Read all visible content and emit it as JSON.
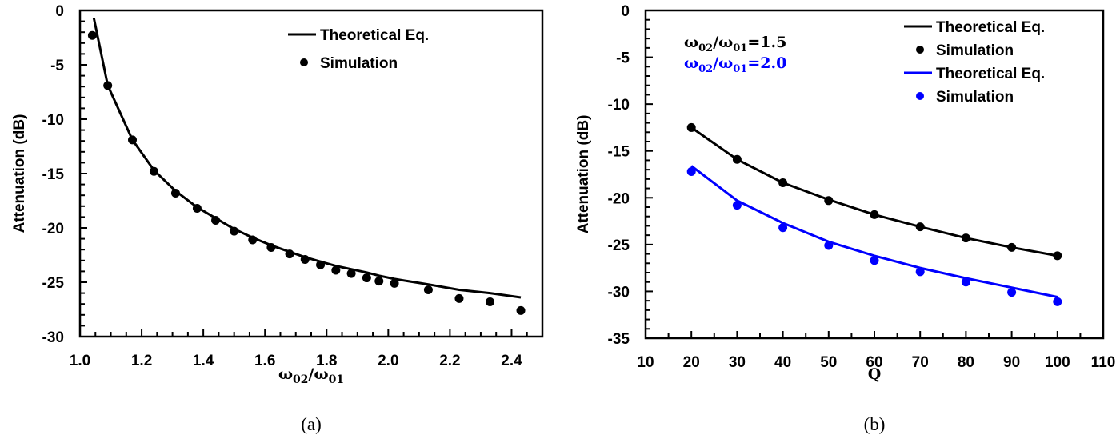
{
  "chart_data": [
    {
      "id": "a",
      "type": "line",
      "panel_label": "(a)",
      "title": "",
      "xlabel": {
        "main": "ω",
        "sub1": "02",
        "slash": "/",
        "main2": "ω",
        "sub2": "01"
      },
      "ylabel": "Attenuation (dB)",
      "xlim": [
        1.0,
        2.5
      ],
      "ylim": [
        -30,
        0
      ],
      "xticks": [
        1.0,
        1.2,
        1.4,
        1.6,
        1.8,
        2.0,
        2.2,
        2.4
      ],
      "xtick_labels": [
        "1.0",
        "1.2",
        "1.4",
        "1.6",
        "1.8",
        "2.0",
        "2.2",
        "2.4"
      ],
      "yticks": [
        0,
        -5,
        -10,
        -15,
        -20,
        -25,
        -30
      ],
      "ytick_labels": [
        "0",
        "-5",
        "-10",
        "-15",
        "-20",
        "-25",
        "-30"
      ],
      "grid": false,
      "legend": {
        "placement": "top-right",
        "entries": [
          {
            "label": "Theoretical Eq.",
            "kind": "line",
            "color": "#000000"
          },
          {
            "label": "Simulation",
            "kind": "marker",
            "color": "#000000"
          }
        ]
      },
      "series": [
        {
          "name": "Theoretical Eq.",
          "kind": "line",
          "color": "#000000",
          "x": [
            1.045,
            1.09,
            1.17,
            1.24,
            1.31,
            1.38,
            1.44,
            1.5,
            1.56,
            1.62,
            1.68,
            1.73,
            1.78,
            1.83,
            1.88,
            1.93,
            1.97,
            2.02,
            2.13,
            2.23,
            2.33,
            2.43
          ],
          "y": [
            -0.7,
            -6.9,
            -11.9,
            -14.7,
            -16.6,
            -18.1,
            -19.1,
            -20.1,
            -20.9,
            -21.6,
            -22.2,
            -22.7,
            -23.1,
            -23.5,
            -23.8,
            -24.1,
            -24.4,
            -24.7,
            -25.2,
            -25.7,
            -26.0,
            -26.4
          ]
        },
        {
          "name": "Simulation",
          "kind": "scatter",
          "color": "#000000",
          "x": [
            1.04,
            1.09,
            1.17,
            1.24,
            1.31,
            1.38,
            1.44,
            1.5,
            1.56,
            1.62,
            1.68,
            1.73,
            1.78,
            1.83,
            1.88,
            1.93,
            1.97,
            2.02,
            2.13,
            2.23,
            2.33,
            2.43
          ],
          "y": [
            -2.3,
            -6.9,
            -11.9,
            -14.8,
            -16.8,
            -18.2,
            -19.3,
            -20.3,
            -21.1,
            -21.8,
            -22.4,
            -22.9,
            -23.4,
            -23.9,
            -24.2,
            -24.6,
            -24.9,
            -25.1,
            -25.7,
            -26.5,
            -26.8,
            -27.6
          ]
        }
      ]
    },
    {
      "id": "b",
      "type": "line",
      "panel_label": "(b)",
      "title": "",
      "xlabel": "Q",
      "ylabel": "Attenuation (dB)",
      "xlim": [
        10,
        110
      ],
      "ylim": [
        -35,
        0
      ],
      "xticks": [
        10,
        20,
        30,
        40,
        50,
        60,
        70,
        80,
        90,
        100,
        110
      ],
      "xtick_labels": [
        "10",
        "20",
        "30",
        "40",
        "50",
        "60",
        "70",
        "80",
        "90",
        "100",
        "110"
      ],
      "yticks": [
        0,
        -5,
        -10,
        -15,
        -20,
        -25,
        -30,
        -35
      ],
      "ytick_labels": [
        "0",
        "-5",
        "-10",
        "-15",
        "-20",
        "-25",
        "-30",
        "-35"
      ],
      "grid": false,
      "annotations": [
        {
          "text_main": "ω",
          "sub1": "02",
          "slash": "/",
          "text_main2": "ω",
          "sub2": "01",
          "value": "=1.5",
          "color": "#000000"
        },
        {
          "text_main": "ω",
          "sub1": "02",
          "slash": "/",
          "text_main2": "ω",
          "sub2": "01",
          "value": "=2.0",
          "color": "#0000ff"
        }
      ],
      "legend": {
        "placement": "top-right",
        "entries": [
          {
            "label": "Theoretical Eq.",
            "kind": "line",
            "color": "#000000"
          },
          {
            "label": "Simulation",
            "kind": "marker",
            "color": "#000000"
          },
          {
            "label": "Theoretical Eq.",
            "kind": "line",
            "color": "#0000ff"
          },
          {
            "label": "Simulation",
            "kind": "marker",
            "color": "#0000ff"
          }
        ]
      },
      "series": [
        {
          "name": "Theoretical Eq. (ω02/ω01=1.5)",
          "kind": "line",
          "color": "#000000",
          "x": [
            20,
            30,
            40,
            50,
            60,
            70,
            80,
            90,
            100
          ],
          "y": [
            -12.5,
            -15.9,
            -18.4,
            -20.2,
            -21.8,
            -23.1,
            -24.3,
            -25.3,
            -26.2
          ]
        },
        {
          "name": "Simulation (ω02/ω01=1.5)",
          "kind": "scatter",
          "color": "#000000",
          "x": [
            20,
            30,
            40,
            50,
            60,
            70,
            80,
            90,
            100
          ],
          "y": [
            -12.5,
            -15.9,
            -18.4,
            -20.3,
            -21.8,
            -23.1,
            -24.3,
            -25.3,
            -26.2
          ]
        },
        {
          "name": "Theoretical Eq. (ω02/ω01=2.0)",
          "kind": "line",
          "color": "#0000ff",
          "x": [
            20,
            30,
            40,
            50,
            60,
            70,
            80,
            90,
            100
          ],
          "y": [
            -16.6,
            -20.3,
            -22.7,
            -24.7,
            -26.2,
            -27.5,
            -28.6,
            -29.6,
            -30.6
          ]
        },
        {
          "name": "Simulation (ω02/ω01=2.0)",
          "kind": "scatter",
          "color": "#0000ff",
          "x": [
            20,
            30,
            40,
            50,
            60,
            70,
            80,
            90,
            100
          ],
          "y": [
            -17.2,
            -20.8,
            -23.2,
            -25.1,
            -26.7,
            -27.9,
            -29.0,
            -30.1,
            -31.1
          ]
        }
      ]
    }
  ]
}
